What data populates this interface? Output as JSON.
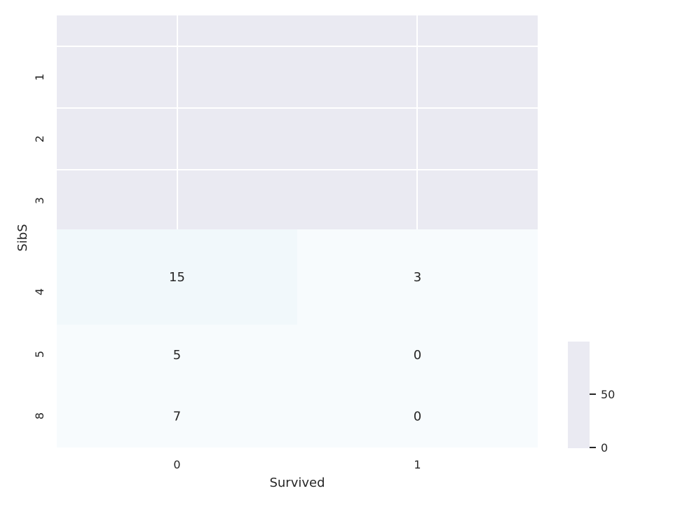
{
  "chart_data": {
    "type": "heatmap",
    "xlabel": "Survived",
    "ylabel": "SibS",
    "x_categories": [
      "0",
      "1"
    ],
    "y_categories": [
      "1",
      "2",
      "3",
      "4",
      "5",
      "8"
    ],
    "visible_y_categories": [
      "4",
      "5",
      "8"
    ],
    "values": [
      [
        15,
        3
      ],
      [
        5,
        0
      ],
      [
        7,
        0
      ]
    ],
    "cell_labels": [
      [
        "15",
        "3"
      ],
      [
        "5",
        "0"
      ],
      [
        "7",
        "0"
      ]
    ],
    "colorbar": {
      "ticks": [
        0,
        50
      ],
      "tick_labels": [
        "0",
        "50"
      ]
    },
    "grid": true,
    "colors": {
      "axes_background": "#eaeaf2",
      "grid_line": "#ffffff",
      "cell_low": "#f7fbfd",
      "cell_mid": "#f1f8fb",
      "text": "#262626"
    }
  }
}
